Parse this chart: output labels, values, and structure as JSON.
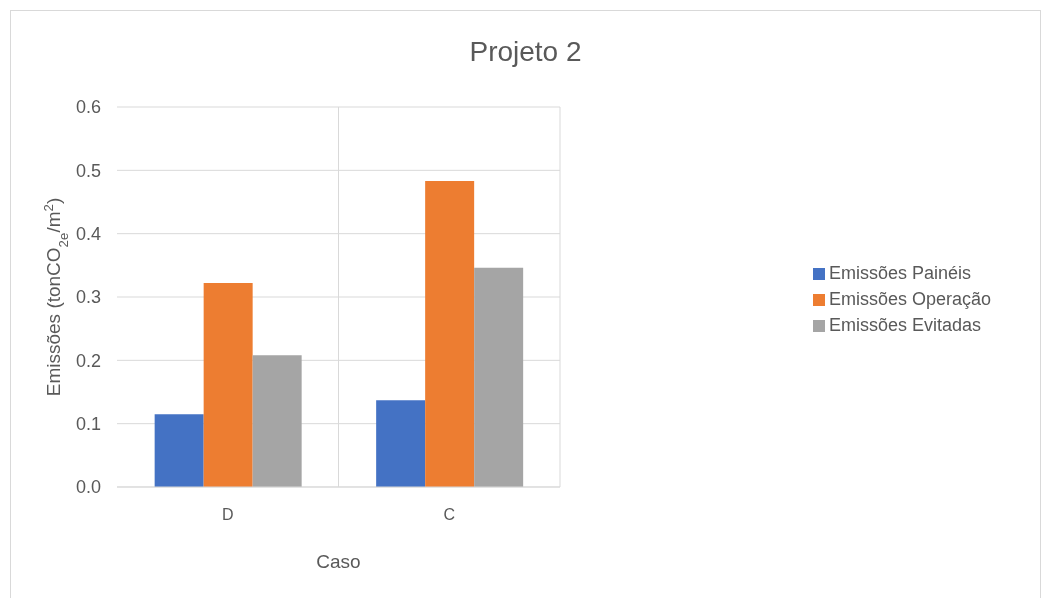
{
  "chart_data": {
    "type": "bar",
    "title": "Projeto 2",
    "xlabel": "Caso",
    "ylabel": "Emissões (tonCO$_{2e}$/m$^{2}$)",
    "categories": [
      "D",
      "C"
    ],
    "series": [
      {
        "name": "Emissões Painéis",
        "color": "#4472c4",
        "values": [
          0.115,
          0.137
        ]
      },
      {
        "name": "Emissões Operação",
        "color": "#ed7d31",
        "values": [
          0.322,
          0.483
        ]
      },
      {
        "name": "Emissões Evitadas",
        "color": "#a5a5a5",
        "values": [
          0.208,
          0.346
        ]
      }
    ],
    "ylim": [
      0,
      0.6
    ],
    "yticks": [
      {
        "value": 0,
        "label": "0.0"
      },
      {
        "value": 0.1,
        "label": "0.1"
      },
      {
        "value": 0.2,
        "label": "0.2"
      },
      {
        "value": 0.3,
        "label": "0.3"
      },
      {
        "value": 0.4,
        "label": "0.4"
      },
      {
        "value": 0.5,
        "label": "0.5"
      },
      {
        "value": 0.6,
        "label": "0.6"
      }
    ],
    "grid": true,
    "legend": "right"
  }
}
